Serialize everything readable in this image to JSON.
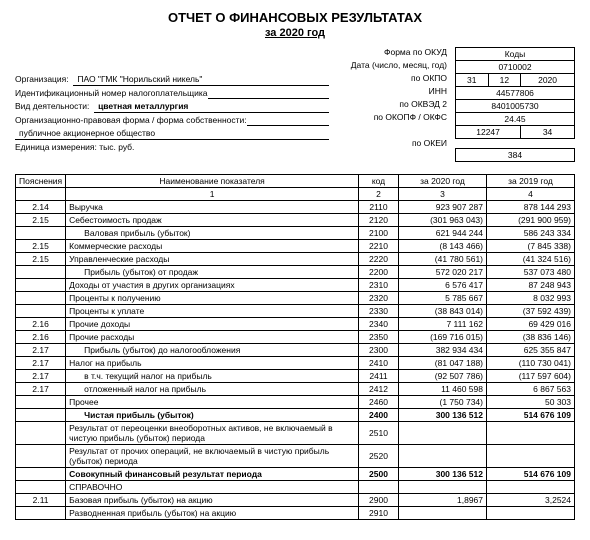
{
  "title": "ОТЧЕТ О ФИНАНСОВЫХ РЕЗУЛЬТАТАХ",
  "subtitle": "за 2020 год",
  "header": {
    "org_label": "Организация:  ",
    "org_value": "ПАО \"ГМК \"Норильский никель\"",
    "inn_label": "Идентификационный номер налогоплательщика",
    "act_label": "Вид деятельности:  ",
    "act_value": "цветная металлургия",
    "form_label": "Организационно-правовая форма / форма собственности:",
    "form_value": "публичное акционерное общество",
    "unit_label": "Единица измерения: тыс. руб."
  },
  "mid_labels": {
    "okud": "Форма по ОКУД",
    "date": "Дата (число, месяц, год)",
    "okpo": "по ОКПО",
    "inn": "ИНН",
    "okved": "по ОКВЭД 2",
    "okopf": "по ОКОПФ / ОКФС",
    "okei": "по ОКЕИ"
  },
  "codes": {
    "head": "Коды",
    "okud": "0710002",
    "date_d": "31",
    "date_m": "12",
    "date_y": "2020",
    "okpo": "44577806",
    "inn": "8401005730",
    "okved": "24.45",
    "okopf": "12247",
    "okfs": "34",
    "okei": "384"
  },
  "cols": {
    "pos": "Пояснения",
    "name": "Наименование показателя",
    "code": "код",
    "y1": "за 2020 год",
    "y2": "за 2019 год",
    "n1": "1",
    "n2": "2",
    "n3": "3",
    "n4": "4"
  },
  "rows": [
    {
      "pos": "2.14",
      "name": "Выручка",
      "code": "2110",
      "y1": "923 907 287",
      "y2": "878 144 293"
    },
    {
      "pos": "2.15",
      "name": "Себестоимость продаж",
      "code": "2120",
      "y1": "(301 963 043)",
      "y2": "(291 900 959)"
    },
    {
      "pos": "",
      "name": "Валовая прибыль (убыток)",
      "indent": true,
      "code": "2100",
      "y1": "621 944 244",
      "y2": "586 243 334"
    },
    {
      "pos": "2.15",
      "name": "Коммерческие расходы",
      "code": "2210",
      "y1": "(8 143 466)",
      "y2": "(7 845 338)"
    },
    {
      "pos": "2.15",
      "name": "Управленческие расходы",
      "code": "2220",
      "y1": "(41 780 561)",
      "y2": "(41 324 516)"
    },
    {
      "pos": "",
      "name": "Прибыль (убыток) от продаж",
      "indent": true,
      "code": "2200",
      "y1": "572 020 217",
      "y2": "537 073 480"
    },
    {
      "pos": "",
      "name": "Доходы от участия в других организациях",
      "code": "2310",
      "y1": "6 576 417",
      "y2": "87 248 943"
    },
    {
      "pos": "",
      "name": "Проценты к получению",
      "code": "2320",
      "y1": "5 785 667",
      "y2": "8 032 993"
    },
    {
      "pos": "",
      "name": "Проценты к уплате",
      "code": "2330",
      "y1": "(38 843 014)",
      "y2": "(37 592 439)"
    },
    {
      "pos": "2.16",
      "name": "Прочие доходы",
      "code": "2340",
      "y1": "7 111 162",
      "y2": "69 429 016"
    },
    {
      "pos": "2.16",
      "name": "Прочие расходы",
      "code": "2350",
      "y1": "(169 716 015)",
      "y2": "(38 836 146)"
    },
    {
      "pos": "2.17",
      "name": "Прибыль (убыток) до налогообложения",
      "indent": true,
      "code": "2300",
      "y1": "382 934 434",
      "y2": "625 355 847"
    },
    {
      "pos": "2.17",
      "name": "Налог на прибыль",
      "code": "2410",
      "y1": "(81 047 188)",
      "y2": "(110 730 041)"
    },
    {
      "pos": "2.17",
      "name": "в т.ч. текущий налог на прибыль",
      "indent": true,
      "code": "2411",
      "y1": "(92 507 786)",
      "y2": "(117 597 604)"
    },
    {
      "pos": "2.17",
      "name": "отложенный налог на прибыль",
      "indent": true,
      "code": "2412",
      "y1": "11 460 598",
      "y2": "6 867 563"
    },
    {
      "pos": "",
      "name": "Прочее",
      "code": "2460",
      "y1": "(1 750 734)",
      "y2": "50 303"
    },
    {
      "pos": "",
      "name": "Чистая прибыль (убыток)",
      "indent": true,
      "code": "2400",
      "y1": "300 136 512",
      "y2": "514 676 109",
      "bold": true
    },
    {
      "pos": "",
      "name": "Результат от переоценки внеоборотных активов, не включаемый в чистую прибыль (убыток) периода",
      "code": "2510",
      "y1": "",
      "y2": ""
    },
    {
      "pos": "",
      "name": "Результат от прочих операций, не включаемый в чистую прибыль (убыток) периода",
      "code": "2520",
      "y1": "",
      "y2": ""
    },
    {
      "pos": "",
      "name": "Совокупный финансовый результат периода",
      "code": "2500",
      "y1": "300 136 512",
      "y2": "514 676 109",
      "bold": true
    },
    {
      "pos": "",
      "name": "СПРАВОЧНО",
      "code": "",
      "y1": "",
      "y2": "",
      "spravo": true
    },
    {
      "pos": "2.11",
      "name": "Базовая прибыль (убыток) на акцию",
      "code": "2900",
      "y1": "1,8967",
      "y2": "3,2524"
    },
    {
      "pos": "",
      "name": "Разводненная прибыль (убыток) на акцию",
      "code": "2910",
      "y1": "",
      "y2": ""
    }
  ]
}
